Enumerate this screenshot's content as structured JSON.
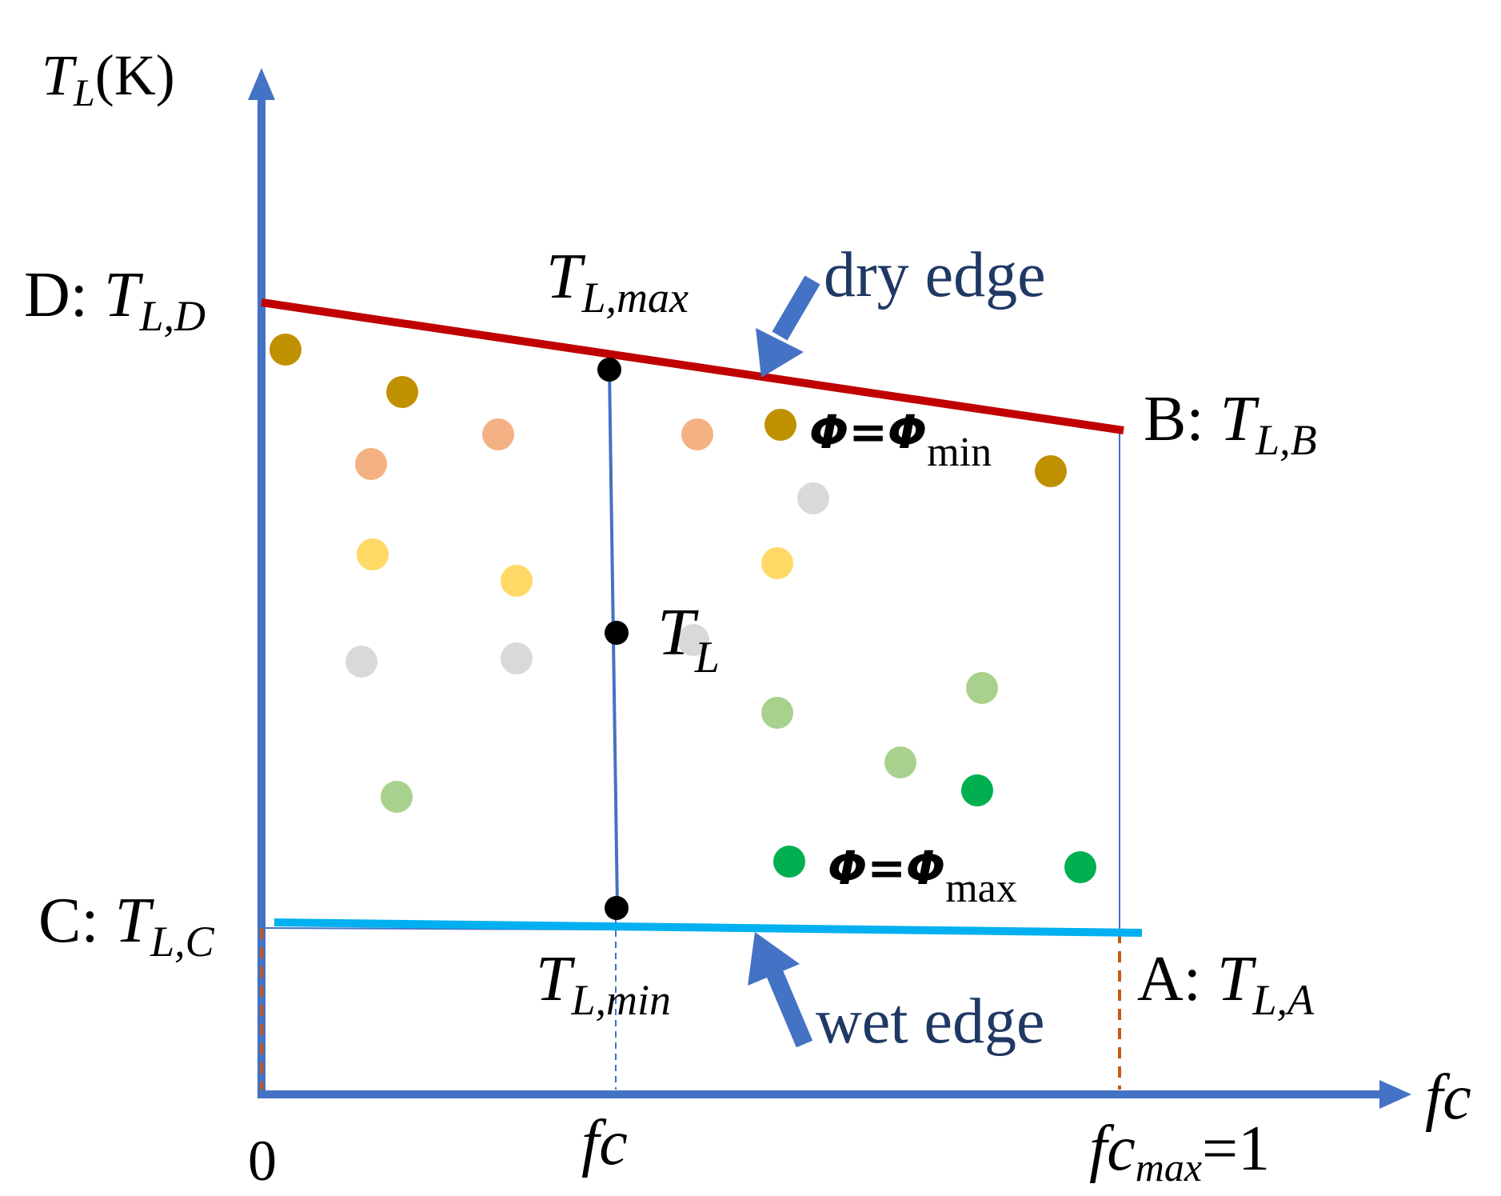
{
  "axes": {
    "y_label_main": "T",
    "y_label_sub": "L",
    "y_label_unit": "(K)",
    "x_label": "fc",
    "x_tick_origin": "0",
    "x_tick_fc": "fc",
    "x_tick_max_main": "fc",
    "x_tick_max_sub": "max",
    "x_tick_max_suffix": "=1"
  },
  "points": {
    "D": {
      "prefix": "D: ",
      "main": "T",
      "sub": "L,D"
    },
    "B": {
      "prefix": "B: ",
      "main": "T",
      "sub": "L,B"
    },
    "C": {
      "prefix": "C: ",
      "main": "T",
      "sub": "L,C"
    },
    "A": {
      "prefix": "A: ",
      "main": "T",
      "sub": "L,A"
    }
  },
  "markers": {
    "tl_max": {
      "main": "T",
      "sub": "L,max"
    },
    "tl": {
      "main": "T",
      "sub": "L"
    },
    "tl_min": {
      "main": "T",
      "sub": "L,min"
    }
  },
  "edges": {
    "dry": "dry edge",
    "wet": "wet edge"
  },
  "phi_labels": {
    "min": {
      "lhs": "Φ",
      "eq": "=",
      "rhs": "Φ",
      "sub": "min"
    },
    "max": {
      "lhs": "Φ",
      "eq": "=",
      "rhs": "Φ",
      "sub": "max"
    }
  },
  "colors": {
    "axis": "#4472c4",
    "dry_edge": "#c00000",
    "wet_edge": "#00b0f0",
    "dashed": "#c55a11",
    "text_dark_blue": "#1f3864",
    "dot_dark_gold": "#bf9000",
    "dot_salmon": "#f4b183",
    "dot_yellow": "#ffd966",
    "dot_gray": "#d9d9d9",
    "dot_light_green": "#a9d18e",
    "dot_green": "#00b050"
  }
}
